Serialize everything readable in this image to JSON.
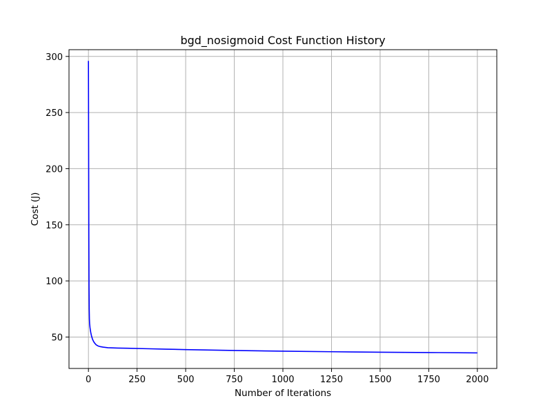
{
  "chart_data": {
    "type": "line",
    "title": "bgd_nosigmoid Cost Function History",
    "xlabel": "Number of Iterations",
    "ylabel": "Cost (J)",
    "xlim": [
      -100,
      2100
    ],
    "ylim": [
      22,
      306
    ],
    "xticks": [
      0,
      250,
      500,
      750,
      1000,
      1250,
      1500,
      1750,
      2000
    ],
    "yticks": [
      50,
      100,
      150,
      200,
      250,
      300
    ],
    "grid": true,
    "series": [
      {
        "color": "#0000ff",
        "x": [
          0,
          1,
          2,
          3,
          4,
          5,
          6,
          8,
          10,
          12,
          15,
          20,
          25,
          30,
          40,
          50,
          60,
          75,
          100,
          150,
          200,
          300,
          400,
          500,
          750,
          1000,
          1250,
          1500,
          1750,
          2000
        ],
        "y": [
          296,
          220,
          140,
          95,
          75,
          66,
          62,
          58.5,
          56,
          54,
          51.5,
          48.5,
          46.5,
          45,
          43,
          42,
          41.5,
          41,
          40.5,
          40.2,
          40,
          39.6,
          39.2,
          38.8,
          38.0,
          37.4,
          36.9,
          36.5,
          36.2,
          35.9
        ]
      }
    ]
  }
}
